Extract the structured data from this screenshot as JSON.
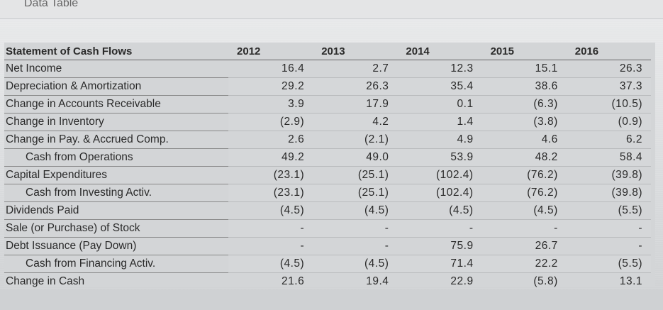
{
  "header": {
    "title": "Data Table"
  },
  "table": {
    "title": "Statement of Cash Flows",
    "years": [
      "2012",
      "2013",
      "2014",
      "2015",
      "2016"
    ],
    "rows": [
      {
        "label": "Net Income",
        "values": [
          "16.4",
          "2.7",
          "12.3",
          "15.1",
          "26.3"
        ]
      },
      {
        "label": "Depreciation & Amortization",
        "values": [
          "29.2",
          "26.3",
          "35.4",
          "38.6",
          "37.3"
        ]
      },
      {
        "label": "Change in Accounts Receivable",
        "values": [
          "3.9",
          "17.9",
          "0.1",
          "(6.3)",
          "(10.5)"
        ]
      },
      {
        "label": "Change in Inventory",
        "values": [
          "(2.9)",
          "4.2",
          "1.4",
          "(3.8)",
          "(0.9)"
        ]
      },
      {
        "label": "Change in Pay. & Accrued Comp.",
        "values": [
          "2.6",
          "(2.1)",
          "4.9",
          "4.6",
          "6.2"
        ]
      },
      {
        "label": "Cash from Operations",
        "values": [
          "49.2",
          "49.0",
          "53.9",
          "48.2",
          "58.4"
        ]
      },
      {
        "label": "Capital Expenditures",
        "values": [
          "(23.1)",
          "(25.1)",
          "(102.4)",
          "(76.2)",
          "(39.8)"
        ]
      },
      {
        "label": "Cash from Investing Activ.",
        "values": [
          "(23.1)",
          "(25.1)",
          "(102.4)",
          "(76.2)",
          "(39.8)"
        ]
      },
      {
        "label": "Dividends Paid",
        "values": [
          "(4.5)",
          "(4.5)",
          "(4.5)",
          "(4.5)",
          "(5.5)"
        ]
      },
      {
        "label": "Sale (or Purchase) of Stock",
        "values": [
          "-",
          "-",
          "-",
          "-",
          "-"
        ]
      },
      {
        "label": "Debt Issuance (Pay Down)",
        "values": [
          "-",
          "-",
          "75.9",
          "26.7",
          "-"
        ]
      },
      {
        "label": "Cash from Financing Activ.",
        "values": [
          "(4.5)",
          "(4.5)",
          "71.4",
          "22.2",
          "(5.5)"
        ]
      },
      {
        "label": "Change in Cash",
        "values": [
          "21.6",
          "19.4",
          "22.9",
          "(5.8)",
          "13.1"
        ]
      }
    ]
  }
}
